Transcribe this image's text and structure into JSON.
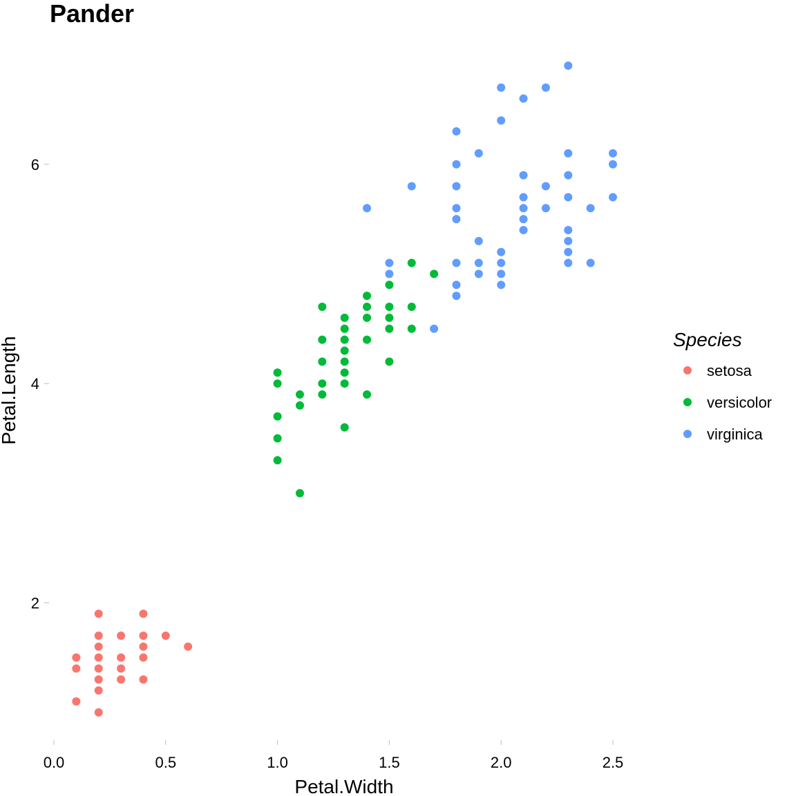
{
  "chart_data": {
    "type": "scatter",
    "title": "Pander",
    "xlabel": "Petal.Width",
    "ylabel": "Petal.Length",
    "xlim": [
      0,
      2.5
    ],
    "ylim": [
      1,
      6.9
    ],
    "xticks": [
      "0.0",
      "0.5",
      "1.0",
      "1.5",
      "2.0",
      "2.5"
    ],
    "yticks": [
      "2",
      "4",
      "6"
    ],
    "grid": false,
    "legend": {
      "title": "Species",
      "position": "right"
    },
    "series": [
      {
        "name": "setosa",
        "color": "#F8766D",
        "points": [
          [
            0.1,
            1.1
          ],
          [
            0.1,
            1.4
          ],
          [
            0.1,
            1.5
          ],
          [
            0.2,
            1.0
          ],
          [
            0.2,
            1.2
          ],
          [
            0.2,
            1.3
          ],
          [
            0.2,
            1.4
          ],
          [
            0.2,
            1.5
          ],
          [
            0.2,
            1.6
          ],
          [
            0.2,
            1.7
          ],
          [
            0.2,
            1.9
          ],
          [
            0.3,
            1.3
          ],
          [
            0.3,
            1.4
          ],
          [
            0.3,
            1.5
          ],
          [
            0.3,
            1.7
          ],
          [
            0.4,
            1.3
          ],
          [
            0.4,
            1.5
          ],
          [
            0.4,
            1.6
          ],
          [
            0.4,
            1.7
          ],
          [
            0.4,
            1.9
          ],
          [
            0.5,
            1.7
          ],
          [
            0.6,
            1.6
          ]
        ]
      },
      {
        "name": "versicolor",
        "color": "#00BA38",
        "points": [
          [
            1.0,
            3.3
          ],
          [
            1.0,
            3.5
          ],
          [
            1.0,
            3.7
          ],
          [
            1.0,
            4.0
          ],
          [
            1.0,
            4.1
          ],
          [
            1.1,
            3.0
          ],
          [
            1.1,
            3.8
          ],
          [
            1.1,
            3.9
          ],
          [
            1.2,
            3.9
          ],
          [
            1.2,
            4.0
          ],
          [
            1.2,
            4.2
          ],
          [
            1.2,
            4.4
          ],
          [
            1.2,
            4.7
          ],
          [
            1.3,
            3.6
          ],
          [
            1.3,
            4.0
          ],
          [
            1.3,
            4.1
          ],
          [
            1.3,
            4.2
          ],
          [
            1.3,
            4.3
          ],
          [
            1.3,
            4.4
          ],
          [
            1.3,
            4.5
          ],
          [
            1.3,
            4.6
          ],
          [
            1.4,
            3.9
          ],
          [
            1.4,
            4.4
          ],
          [
            1.4,
            4.6
          ],
          [
            1.4,
            4.7
          ],
          [
            1.4,
            4.8
          ],
          [
            1.5,
            4.2
          ],
          [
            1.5,
            4.5
          ],
          [
            1.5,
            4.6
          ],
          [
            1.5,
            4.7
          ],
          [
            1.5,
            4.9
          ],
          [
            1.6,
            4.5
          ],
          [
            1.6,
            4.7
          ],
          [
            1.6,
            5.1
          ],
          [
            1.7,
            5.0
          ]
        ]
      },
      {
        "name": "virginica",
        "color": "#619CFF",
        "points": [
          [
            1.4,
            5.6
          ],
          [
            1.5,
            5.0
          ],
          [
            1.5,
            5.1
          ],
          [
            1.6,
            5.8
          ],
          [
            1.7,
            4.5
          ],
          [
            1.8,
            4.8
          ],
          [
            1.8,
            4.9
          ],
          [
            1.8,
            5.1
          ],
          [
            1.8,
            5.5
          ],
          [
            1.8,
            5.6
          ],
          [
            1.8,
            5.8
          ],
          [
            1.8,
            6.0
          ],
          [
            1.8,
            6.3
          ],
          [
            1.9,
            5.0
          ],
          [
            1.9,
            5.1
          ],
          [
            1.9,
            5.3
          ],
          [
            1.9,
            6.1
          ],
          [
            2.0,
            4.9
          ],
          [
            2.0,
            5.0
          ],
          [
            2.0,
            5.1
          ],
          [
            2.0,
            5.2
          ],
          [
            2.0,
            6.4
          ],
          [
            2.0,
            6.7
          ],
          [
            2.1,
            5.4
          ],
          [
            2.1,
            5.5
          ],
          [
            2.1,
            5.6
          ],
          [
            2.1,
            5.7
          ],
          [
            2.1,
            5.9
          ],
          [
            2.1,
            6.6
          ],
          [
            2.2,
            5.6
          ],
          [
            2.2,
            5.8
          ],
          [
            2.2,
            6.7
          ],
          [
            2.3,
            5.1
          ],
          [
            2.3,
            5.2
          ],
          [
            2.3,
            5.3
          ],
          [
            2.3,
            5.4
          ],
          [
            2.3,
            5.7
          ],
          [
            2.3,
            5.9
          ],
          [
            2.3,
            6.1
          ],
          [
            2.3,
            6.9
          ],
          [
            2.4,
            5.1
          ],
          [
            2.4,
            5.6
          ],
          [
            2.5,
            5.7
          ],
          [
            2.5,
            6.0
          ],
          [
            2.5,
            6.1
          ]
        ]
      }
    ]
  }
}
